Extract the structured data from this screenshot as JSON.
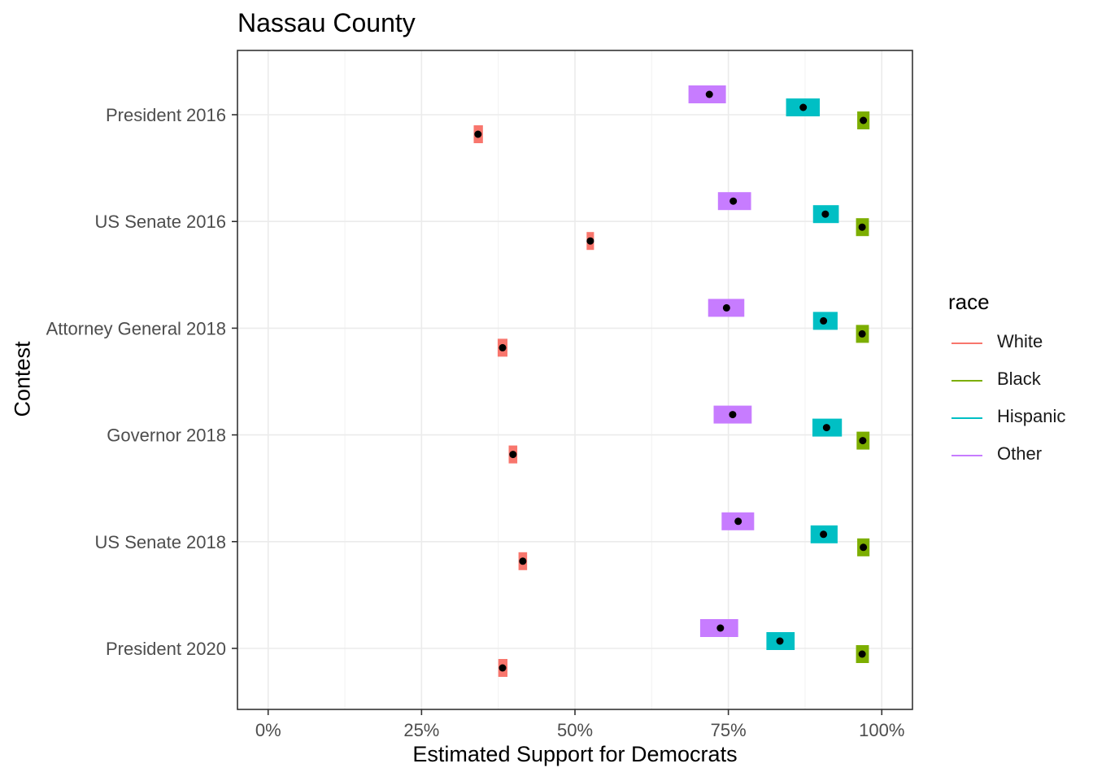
{
  "chart_data": {
    "type": "scatter",
    "title": "Nassau County",
    "xlabel": "Estimated Support for Democrats",
    "ylabel": "Contest",
    "xlim": [
      -0.05,
      1.05
    ],
    "x_ticks": [
      0,
      0.25,
      0.5,
      0.75,
      1.0
    ],
    "x_tick_labels": [
      "0%",
      "25%",
      "50%",
      "75%",
      "100%"
    ],
    "categories": [
      "President 2016",
      "US Senate 2016",
      "Attorney General 2018",
      "Governor 2018",
      "US Senate 2018",
      "President 2020"
    ],
    "legend_title": "race",
    "legend_position": "right",
    "grid": true,
    "series": [
      {
        "name": "White",
        "color": "#F8766D",
        "values": [
          0.342,
          0.525,
          0.382,
          0.399,
          0.415,
          0.382
        ],
        "lower": [
          0.335,
          0.519,
          0.374,
          0.392,
          0.408,
          0.375
        ],
        "upper": [
          0.35,
          0.531,
          0.39,
          0.406,
          0.422,
          0.39
        ]
      },
      {
        "name": "Black",
        "color": "#7CAE00",
        "values": [
          0.97,
          0.968,
          0.968,
          0.969,
          0.97,
          0.968
        ],
        "lower": [
          0.96,
          0.958,
          0.958,
          0.959,
          0.96,
          0.958
        ],
        "upper": [
          0.98,
          0.979,
          0.979,
          0.98,
          0.98,
          0.979
        ]
      },
      {
        "name": "Hispanic",
        "color": "#00BFC4",
        "values": [
          0.872,
          0.908,
          0.905,
          0.91,
          0.905,
          0.834
        ],
        "lower": [
          0.844,
          0.888,
          0.888,
          0.887,
          0.884,
          0.812
        ],
        "upper": [
          0.899,
          0.93,
          0.928,
          0.935,
          0.928,
          0.858
        ]
      },
      {
        "name": "Other",
        "color": "#C77CFF",
        "values": [
          0.719,
          0.758,
          0.747,
          0.757,
          0.766,
          0.737
        ],
        "lower": [
          0.685,
          0.733,
          0.717,
          0.726,
          0.739,
          0.704
        ],
        "upper": [
          0.746,
          0.787,
          0.776,
          0.788,
          0.792,
          0.766
        ]
      }
    ]
  }
}
